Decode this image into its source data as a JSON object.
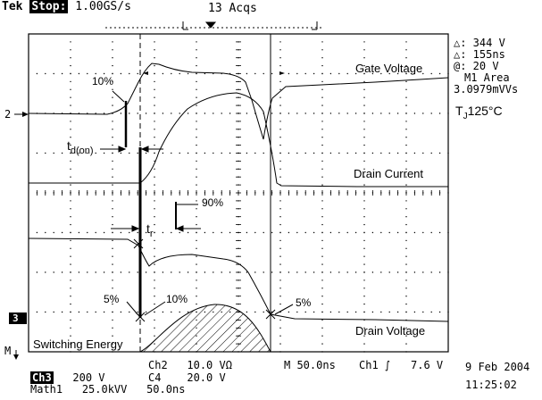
{
  "header": {
    "brand": "Tek",
    "run_state": "Stop:",
    "sample_rate": "1.00GS/s",
    "acquisitions": "13 Acqs"
  },
  "measurements": {
    "delta_v": "△: 344 V",
    "delta_t": "△: 155ns",
    "at_value": "@: 20 V",
    "area_label": "M1 Area",
    "area_value": "3.0979mVVs",
    "tj_prefix": "T",
    "tj_sub": "J",
    "tj_value": "125°C"
  },
  "annotations": {
    "gate_voltage": "Gate Voltage",
    "drain_current": "Drain Current",
    "drain_voltage": "Drain Voltage",
    "switching_energy": "Switching Energy",
    "pct10_top": "10%",
    "td_on_main": "t",
    "td_on_sub": "d(on)",
    "pct90": "90%",
    "tr_main": "t",
    "tr_sub": "r",
    "pct5_left": "5%",
    "pct10_bottom": "10%",
    "pct5_right": "5%"
  },
  "markers": {
    "ch2_level": "2",
    "ch3_level": "3",
    "math_marker": "M"
  },
  "status": {
    "ch3_tag": "Ch3",
    "ch3_scale": "200 V",
    "ch2_label": "Ch2",
    "ch2_scale": "10.0 VΩ",
    "c4_label": "C4",
    "c4_scale": "20.0 V",
    "timebase": "M 50.0ns",
    "trigger_src": "Ch1",
    "trigger_level": "7.6 V",
    "math_label": "Math1",
    "math_scale": "25.0kVV",
    "math_time": "50.0ns",
    "date": "9 Feb 2004",
    "time": "11:25:02"
  }
}
